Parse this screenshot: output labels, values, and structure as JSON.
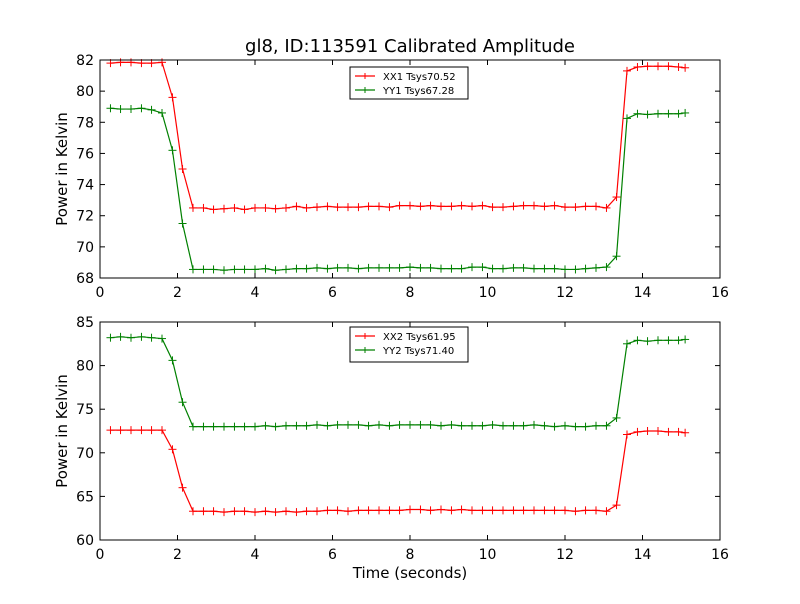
{
  "title": "gl8, ID:113591 Calibrated Amplitude",
  "colors": {
    "red": "#ff0000",
    "green": "#008000"
  },
  "chart_data": [
    {
      "type": "line",
      "ylabel": "Power in Kelvin",
      "xlabel": "",
      "xlim": [
        0,
        16
      ],
      "ylim": [
        68,
        82
      ],
      "xticks": [
        0,
        2,
        4,
        6,
        8,
        10,
        12,
        14,
        16
      ],
      "yticks": [
        68,
        70,
        72,
        74,
        76,
        78,
        80,
        82
      ],
      "legend_position": "top-center",
      "x": [
        0.27,
        0.53,
        0.8,
        1.07,
        1.33,
        1.6,
        1.87,
        2.13,
        2.4,
        2.67,
        2.93,
        3.2,
        3.47,
        3.73,
        4.0,
        4.27,
        4.53,
        4.8,
        5.07,
        5.33,
        5.6,
        5.87,
        6.13,
        6.4,
        6.67,
        6.93,
        7.2,
        7.47,
        7.73,
        8.0,
        8.27,
        8.53,
        8.8,
        9.07,
        9.33,
        9.6,
        9.87,
        10.13,
        10.4,
        10.67,
        10.93,
        11.2,
        11.47,
        11.73,
        12.0,
        12.27,
        12.53,
        12.8,
        13.07,
        13.33,
        13.6,
        13.87,
        14.13,
        14.4,
        14.67,
        14.93,
        15.1
      ],
      "series": [
        {
          "name": "XX1 Tsys70.52",
          "color": "#ff0000",
          "values": [
            81.8,
            81.85,
            81.85,
            81.8,
            81.8,
            81.85,
            79.6,
            75.0,
            72.5,
            72.5,
            72.4,
            72.45,
            72.5,
            72.4,
            72.5,
            72.5,
            72.45,
            72.5,
            72.6,
            72.5,
            72.55,
            72.6,
            72.55,
            72.55,
            72.55,
            72.6,
            72.6,
            72.55,
            72.65,
            72.65,
            72.6,
            72.65,
            72.6,
            72.6,
            72.65,
            72.6,
            72.65,
            72.55,
            72.55,
            72.6,
            72.65,
            72.65,
            72.6,
            72.65,
            72.55,
            72.55,
            72.6,
            72.6,
            72.5,
            73.2,
            81.3,
            81.55,
            81.6,
            81.6,
            81.6,
            81.55,
            81.5
          ]
        },
        {
          "name": "YY1 Tsys67.28",
          "color": "#008000",
          "values": [
            78.9,
            78.85,
            78.85,
            78.9,
            78.8,
            78.6,
            76.2,
            71.5,
            68.55,
            68.55,
            68.55,
            68.5,
            68.55,
            68.55,
            68.55,
            68.6,
            68.5,
            68.55,
            68.6,
            68.6,
            68.65,
            68.6,
            68.65,
            68.65,
            68.6,
            68.65,
            68.65,
            68.65,
            68.65,
            68.7,
            68.65,
            68.65,
            68.6,
            68.6,
            68.6,
            68.7,
            68.7,
            68.6,
            68.6,
            68.65,
            68.65,
            68.6,
            68.6,
            68.6,
            68.55,
            68.55,
            68.6,
            68.65,
            68.7,
            69.4,
            78.25,
            78.55,
            78.5,
            78.55,
            78.55,
            78.55,
            78.6
          ]
        }
      ]
    },
    {
      "type": "line",
      "ylabel": "Power in Kelvin",
      "xlabel": "Time (seconds)",
      "xlim": [
        0,
        16
      ],
      "ylim": [
        60,
        85
      ],
      "xticks": [
        0,
        2,
        4,
        6,
        8,
        10,
        12,
        14,
        16
      ],
      "yticks": [
        60,
        65,
        70,
        75,
        80,
        85
      ],
      "legend_position": "top-center",
      "x": [
        0.27,
        0.53,
        0.8,
        1.07,
        1.33,
        1.6,
        1.87,
        2.13,
        2.4,
        2.67,
        2.93,
        3.2,
        3.47,
        3.73,
        4.0,
        4.27,
        4.53,
        4.8,
        5.07,
        5.33,
        5.6,
        5.87,
        6.13,
        6.4,
        6.67,
        6.93,
        7.2,
        7.47,
        7.73,
        8.0,
        8.27,
        8.53,
        8.8,
        9.07,
        9.33,
        9.6,
        9.87,
        10.13,
        10.4,
        10.67,
        10.93,
        11.2,
        11.47,
        11.73,
        12.0,
        12.27,
        12.53,
        12.8,
        13.07,
        13.33,
        13.6,
        13.87,
        14.13,
        14.4,
        14.67,
        14.93,
        15.1
      ],
      "series": [
        {
          "name": "XX2 Tsys61.95",
          "color": "#ff0000",
          "values": [
            72.6,
            72.6,
            72.6,
            72.6,
            72.6,
            72.6,
            70.4,
            66.0,
            63.3,
            63.3,
            63.3,
            63.2,
            63.3,
            63.3,
            63.2,
            63.3,
            63.2,
            63.3,
            63.2,
            63.3,
            63.3,
            63.4,
            63.4,
            63.3,
            63.4,
            63.4,
            63.4,
            63.4,
            63.4,
            63.5,
            63.5,
            63.4,
            63.5,
            63.4,
            63.5,
            63.4,
            63.4,
            63.4,
            63.4,
            63.4,
            63.4,
            63.4,
            63.4,
            63.4,
            63.4,
            63.3,
            63.4,
            63.4,
            63.3,
            64.0,
            72.1,
            72.4,
            72.5,
            72.5,
            72.4,
            72.4,
            72.3
          ]
        },
        {
          "name": "YY2 Tsys71.40",
          "color": "#008000",
          "values": [
            83.2,
            83.3,
            83.2,
            83.3,
            83.2,
            83.1,
            80.6,
            75.8,
            73.0,
            73.0,
            73.0,
            73.0,
            73.0,
            73.0,
            73.0,
            73.1,
            73.0,
            73.1,
            73.1,
            73.1,
            73.2,
            73.1,
            73.2,
            73.2,
            73.2,
            73.1,
            73.2,
            73.1,
            73.2,
            73.2,
            73.2,
            73.2,
            73.1,
            73.2,
            73.1,
            73.1,
            73.1,
            73.2,
            73.1,
            73.1,
            73.1,
            73.2,
            73.1,
            73.0,
            73.1,
            73.0,
            73.0,
            73.1,
            73.1,
            74.0,
            82.5,
            82.9,
            82.8,
            82.9,
            82.9,
            82.9,
            83.0
          ]
        }
      ]
    }
  ]
}
